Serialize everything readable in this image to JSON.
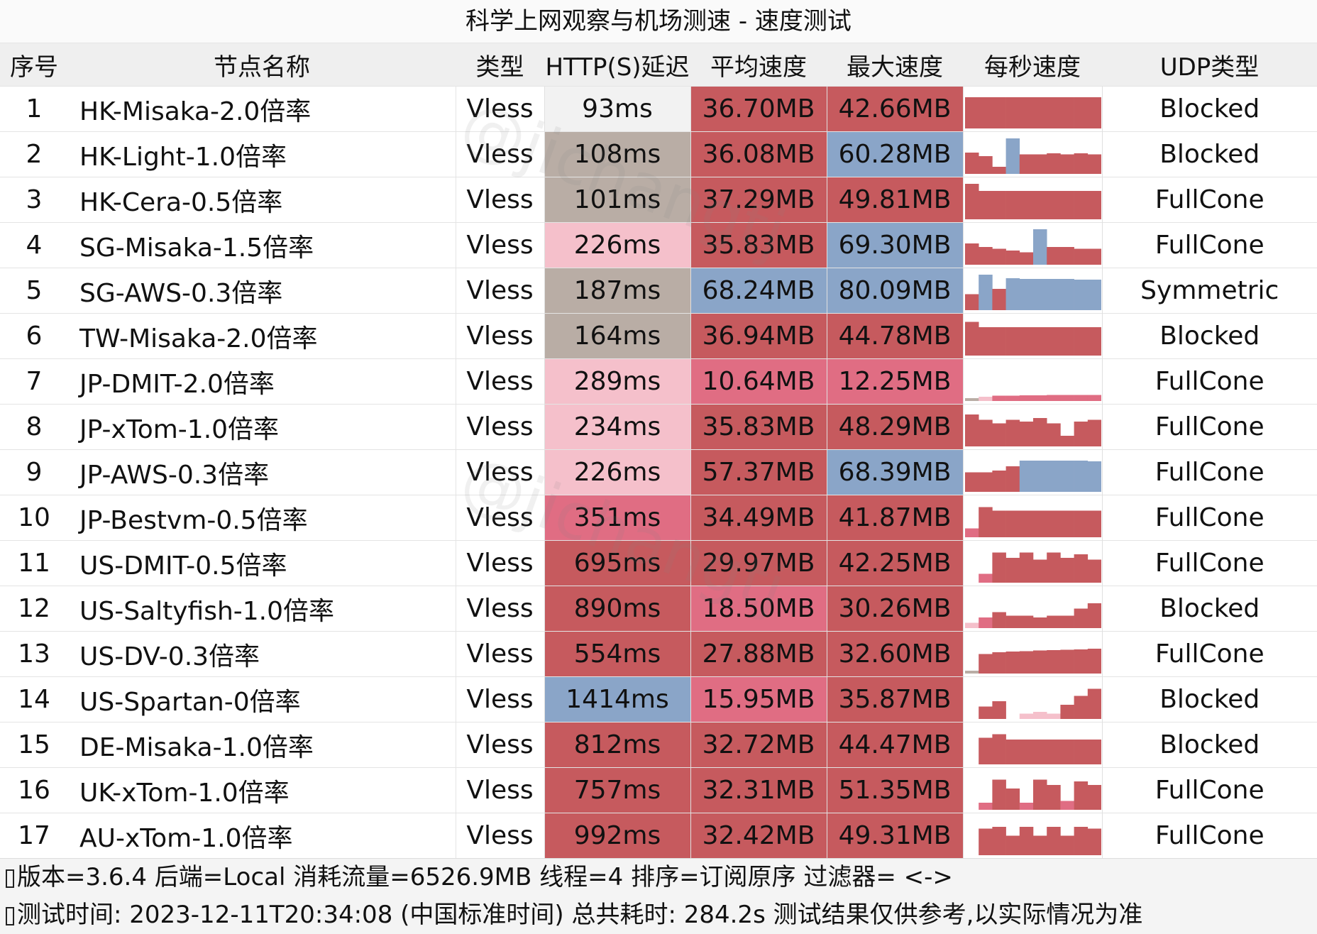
{
  "title": "科学上网观察与机场测速 - 速度测试",
  "watermark": "@jichangtj",
  "colors": {
    "red": "#c65a5e",
    "pink_dark": "#e06d83",
    "pink_light": "#f5c0cb",
    "taupe": "#b9ada5",
    "blue": "#8aa5c8",
    "white_cell": "#f2f2f2",
    "header_bg": "#efefef"
  },
  "headers": {
    "index": "序号",
    "name": "节点名称",
    "type": "类型",
    "latency": "HTTP(S)延迟",
    "avg_speed": "平均速度",
    "max_speed": "最大速度",
    "per_second": "每秒速度",
    "udp": "UDP类型"
  },
  "rows": [
    {
      "idx": "1",
      "name": "HK-Misaka-2.0倍率",
      "type": "Vless",
      "latency": "93ms",
      "latency_color": "white",
      "avg": "36.70MB",
      "avg_color": "red",
      "max": "42.66MB",
      "max_color": "red",
      "udp": "Blocked",
      "spark": [
        {
          "v": 0.88,
          "c": "red"
        },
        {
          "v": 0.88,
          "c": "red"
        },
        {
          "v": 0.88,
          "c": "red"
        },
        {
          "v": 0.88,
          "c": "red"
        },
        {
          "v": 0.88,
          "c": "red"
        },
        {
          "v": 0.88,
          "c": "red"
        },
        {
          "v": 0.88,
          "c": "red"
        },
        {
          "v": 0.88,
          "c": "red"
        },
        {
          "v": 0.88,
          "c": "red"
        },
        {
          "v": 0.88,
          "c": "red"
        }
      ]
    },
    {
      "idx": "2",
      "name": "HK-Light-1.0倍率",
      "type": "Vless",
      "latency": "108ms",
      "latency_color": "taupe",
      "avg": "36.08MB",
      "avg_color": "red",
      "max": "60.28MB",
      "max_color": "blue",
      "udp": "Blocked",
      "spark": [
        {
          "v": 0.6,
          "c": "red"
        },
        {
          "v": 0.5,
          "c": "red"
        },
        {
          "v": 0.2,
          "c": "red"
        },
        {
          "v": 1.0,
          "c": "blue"
        },
        {
          "v": 0.55,
          "c": "red"
        },
        {
          "v": 0.55,
          "c": "red"
        },
        {
          "v": 0.58,
          "c": "red"
        },
        {
          "v": 0.55,
          "c": "red"
        },
        {
          "v": 0.58,
          "c": "red"
        },
        {
          "v": 0.55,
          "c": "red"
        }
      ]
    },
    {
      "idx": "3",
      "name": "HK-Cera-0.5倍率",
      "type": "Vless",
      "latency": "101ms",
      "latency_color": "taupe",
      "avg": "37.29MB",
      "avg_color": "red",
      "max": "49.81MB",
      "max_color": "red",
      "udp": "FullCone",
      "spark": [
        {
          "v": 1.0,
          "c": "red"
        },
        {
          "v": 0.8,
          "c": "red"
        },
        {
          "v": 0.8,
          "c": "red"
        },
        {
          "v": 0.8,
          "c": "red"
        },
        {
          "v": 0.8,
          "c": "red"
        },
        {
          "v": 0.8,
          "c": "red"
        },
        {
          "v": 0.8,
          "c": "red"
        },
        {
          "v": 0.8,
          "c": "red"
        },
        {
          "v": 0.8,
          "c": "red"
        },
        {
          "v": 0.8,
          "c": "red"
        }
      ]
    },
    {
      "idx": "4",
      "name": "SG-Misaka-1.5倍率",
      "type": "Vless",
      "latency": "226ms",
      "latency_color": "pink_light",
      "avg": "35.83MB",
      "avg_color": "red",
      "max": "69.30MB",
      "max_color": "blue",
      "udp": "FullCone",
      "spark": [
        {
          "v": 0.6,
          "c": "red"
        },
        {
          "v": 0.5,
          "c": "red"
        },
        {
          "v": 0.45,
          "c": "red"
        },
        {
          "v": 0.4,
          "c": "red"
        },
        {
          "v": 0.35,
          "c": "red"
        },
        {
          "v": 1.0,
          "c": "blue"
        },
        {
          "v": 0.5,
          "c": "red"
        },
        {
          "v": 0.5,
          "c": "red"
        },
        {
          "v": 0.45,
          "c": "red"
        },
        {
          "v": 0.45,
          "c": "red"
        }
      ]
    },
    {
      "idx": "5",
      "name": "SG-AWS-0.3倍率",
      "type": "Vless",
      "latency": "187ms",
      "latency_color": "taupe",
      "avg": "68.24MB",
      "avg_color": "blue",
      "max": "80.09MB",
      "max_color": "blue",
      "udp": "Symmetric",
      "spark": [
        {
          "v": 0.45,
          "c": "red"
        },
        {
          "v": 1.0,
          "c": "blue"
        },
        {
          "v": 0.6,
          "c": "red"
        },
        {
          "v": 0.9,
          "c": "blue"
        },
        {
          "v": 0.88,
          "c": "blue"
        },
        {
          "v": 0.88,
          "c": "blue"
        },
        {
          "v": 0.88,
          "c": "blue"
        },
        {
          "v": 0.88,
          "c": "blue"
        },
        {
          "v": 0.86,
          "c": "blue"
        },
        {
          "v": 0.86,
          "c": "blue"
        }
      ]
    },
    {
      "idx": "6",
      "name": "TW-Misaka-2.0倍率",
      "type": "Vless",
      "latency": "164ms",
      "latency_color": "taupe",
      "avg": "36.94MB",
      "avg_color": "red",
      "max": "44.78MB",
      "max_color": "red",
      "udp": "Blocked",
      "spark": [
        {
          "v": 0.95,
          "c": "red"
        },
        {
          "v": 0.8,
          "c": "red"
        },
        {
          "v": 0.8,
          "c": "red"
        },
        {
          "v": 0.8,
          "c": "red"
        },
        {
          "v": 0.8,
          "c": "red"
        },
        {
          "v": 0.8,
          "c": "red"
        },
        {
          "v": 0.8,
          "c": "red"
        },
        {
          "v": 0.8,
          "c": "red"
        },
        {
          "v": 0.8,
          "c": "red"
        },
        {
          "v": 0.8,
          "c": "red"
        }
      ]
    },
    {
      "idx": "7",
      "name": "JP-DMIT-2.0倍率",
      "type": "Vless",
      "latency": "289ms",
      "latency_color": "pink_light",
      "avg": "10.64MB",
      "avg_color": "pink_dark",
      "max": "12.25MB",
      "max_color": "pink_dark",
      "udp": "FullCone",
      "spark": [
        {
          "v": 0.08,
          "c": "taupe"
        },
        {
          "v": 0.12,
          "c": "pink_light"
        },
        {
          "v": 0.15,
          "c": "pink_dark"
        },
        {
          "v": 0.15,
          "c": "pink_dark"
        },
        {
          "v": 0.16,
          "c": "pink_dark"
        },
        {
          "v": 0.16,
          "c": "pink_dark"
        },
        {
          "v": 0.17,
          "c": "pink_dark"
        },
        {
          "v": 0.17,
          "c": "pink_dark"
        },
        {
          "v": 0.17,
          "c": "pink_dark"
        },
        {
          "v": 0.17,
          "c": "pink_dark"
        }
      ]
    },
    {
      "idx": "8",
      "name": "JP-xTom-1.0倍率",
      "type": "Vless",
      "latency": "234ms",
      "latency_color": "pink_light",
      "avg": "35.83MB",
      "avg_color": "red",
      "max": "48.29MB",
      "max_color": "red",
      "udp": "FullCone",
      "spark": [
        {
          "v": 0.9,
          "c": "red"
        },
        {
          "v": 0.75,
          "c": "red"
        },
        {
          "v": 0.65,
          "c": "red"
        },
        {
          "v": 0.75,
          "c": "red"
        },
        {
          "v": 0.7,
          "c": "red"
        },
        {
          "v": 0.8,
          "c": "red"
        },
        {
          "v": 0.65,
          "c": "red"
        },
        {
          "v": 0.3,
          "c": "red"
        },
        {
          "v": 0.7,
          "c": "red"
        },
        {
          "v": 0.75,
          "c": "red"
        }
      ]
    },
    {
      "idx": "9",
      "name": "JP-AWS-0.3倍率",
      "type": "Vless",
      "latency": "226ms",
      "latency_color": "pink_light",
      "avg": "57.37MB",
      "avg_color": "red",
      "max": "68.39MB",
      "max_color": "blue",
      "udp": "FullCone",
      "spark": [
        {
          "v": 0.55,
          "c": "red"
        },
        {
          "v": 0.55,
          "c": "red"
        },
        {
          "v": 0.6,
          "c": "red"
        },
        {
          "v": 0.72,
          "c": "red"
        },
        {
          "v": 0.88,
          "c": "blue"
        },
        {
          "v": 0.88,
          "c": "blue"
        },
        {
          "v": 0.88,
          "c": "blue"
        },
        {
          "v": 0.88,
          "c": "blue"
        },
        {
          "v": 0.88,
          "c": "blue"
        },
        {
          "v": 0.86,
          "c": "blue"
        }
      ]
    },
    {
      "idx": "10",
      "name": "JP-Bestvm-0.5倍率",
      "type": "Vless",
      "latency": "351ms",
      "latency_color": "pink_dark",
      "avg": "34.49MB",
      "avg_color": "red",
      "max": "41.87MB",
      "max_color": "red",
      "udp": "FullCone",
      "spark": [
        {
          "v": 0.25,
          "c": "pink_dark"
        },
        {
          "v": 0.85,
          "c": "red"
        },
        {
          "v": 0.75,
          "c": "red"
        },
        {
          "v": 0.75,
          "c": "red"
        },
        {
          "v": 0.75,
          "c": "red"
        },
        {
          "v": 0.75,
          "c": "red"
        },
        {
          "v": 0.75,
          "c": "red"
        },
        {
          "v": 0.75,
          "c": "red"
        },
        {
          "v": 0.75,
          "c": "red"
        },
        {
          "v": 0.75,
          "c": "red"
        }
      ]
    },
    {
      "idx": "11",
      "name": "US-DMIT-0.5倍率",
      "type": "Vless",
      "latency": "695ms",
      "latency_color": "red",
      "avg": "29.97MB",
      "avg_color": "red",
      "max": "42.25MB",
      "max_color": "red",
      "udp": "FullCone",
      "spark": [
        {
          "v": 0.0,
          "c": "red"
        },
        {
          "v": 0.25,
          "c": "pink_dark"
        },
        {
          "v": 0.85,
          "c": "red"
        },
        {
          "v": 0.7,
          "c": "red"
        },
        {
          "v": 0.85,
          "c": "red"
        },
        {
          "v": 0.65,
          "c": "red"
        },
        {
          "v": 0.85,
          "c": "red"
        },
        {
          "v": 0.7,
          "c": "red"
        },
        {
          "v": 0.8,
          "c": "red"
        },
        {
          "v": 0.65,
          "c": "red"
        }
      ]
    },
    {
      "idx": "12",
      "name": "US-Saltyfish-1.0倍率",
      "type": "Vless",
      "latency": "890ms",
      "latency_color": "red",
      "avg": "18.50MB",
      "avg_color": "pink_dark",
      "max": "30.26MB",
      "max_color": "red",
      "udp": "Blocked",
      "spark": [
        {
          "v": 0.15,
          "c": "pink_light"
        },
        {
          "v": 0.3,
          "c": "pink_dark"
        },
        {
          "v": 0.45,
          "c": "red"
        },
        {
          "v": 0.35,
          "c": "red"
        },
        {
          "v": 0.35,
          "c": "red"
        },
        {
          "v": 0.3,
          "c": "red"
        },
        {
          "v": 0.35,
          "c": "red"
        },
        {
          "v": 0.35,
          "c": "red"
        },
        {
          "v": 0.55,
          "c": "red"
        },
        {
          "v": 0.7,
          "c": "red"
        }
      ]
    },
    {
      "idx": "13",
      "name": "US-DV-0.3倍率",
      "type": "Vless",
      "latency": "554ms",
      "latency_color": "red",
      "avg": "27.88MB",
      "avg_color": "red",
      "max": "32.60MB",
      "max_color": "red",
      "udp": "FullCone",
      "spark": [
        {
          "v": 0.08,
          "c": "taupe"
        },
        {
          "v": 0.55,
          "c": "red"
        },
        {
          "v": 0.6,
          "c": "red"
        },
        {
          "v": 0.62,
          "c": "red"
        },
        {
          "v": 0.63,
          "c": "red"
        },
        {
          "v": 0.65,
          "c": "red"
        },
        {
          "v": 0.66,
          "c": "red"
        },
        {
          "v": 0.67,
          "c": "red"
        },
        {
          "v": 0.68,
          "c": "red"
        },
        {
          "v": 0.7,
          "c": "red"
        }
      ]
    },
    {
      "idx": "14",
      "name": "US-Spartan-0倍率",
      "type": "Vless",
      "latency": "1414ms",
      "latency_color": "blue",
      "avg": "15.95MB",
      "avg_color": "pink_dark",
      "max": "35.87MB",
      "max_color": "red",
      "udp": "Blocked",
      "spark": [
        {
          "v": 0.0,
          "c": "red"
        },
        {
          "v": 0.35,
          "c": "red"
        },
        {
          "v": 0.5,
          "c": "red"
        },
        {
          "v": 0.0,
          "c": "red"
        },
        {
          "v": 0.15,
          "c": "pink_light"
        },
        {
          "v": 0.2,
          "c": "pink_light"
        },
        {
          "v": 0.15,
          "c": "pink_light"
        },
        {
          "v": 0.4,
          "c": "red"
        },
        {
          "v": 0.65,
          "c": "red"
        },
        {
          "v": 0.85,
          "c": "red"
        }
      ]
    },
    {
      "idx": "15",
      "name": "DE-Misaka-1.0倍率",
      "type": "Vless",
      "latency": "812ms",
      "latency_color": "red",
      "avg": "32.72MB",
      "avg_color": "red",
      "max": "44.47MB",
      "max_color": "red",
      "udp": "Blocked",
      "spark": [
        {
          "v": 0.0,
          "c": "red"
        },
        {
          "v": 0.75,
          "c": "red"
        },
        {
          "v": 0.85,
          "c": "red"
        },
        {
          "v": 0.7,
          "c": "red"
        },
        {
          "v": 0.7,
          "c": "red"
        },
        {
          "v": 0.7,
          "c": "red"
        },
        {
          "v": 0.7,
          "c": "red"
        },
        {
          "v": 0.7,
          "c": "red"
        },
        {
          "v": 0.7,
          "c": "red"
        },
        {
          "v": 0.7,
          "c": "red"
        }
      ]
    },
    {
      "idx": "16",
      "name": "UK-xTom-1.0倍率",
      "type": "Vless",
      "latency": "757ms",
      "latency_color": "red",
      "avg": "32.31MB",
      "avg_color": "red",
      "max": "51.35MB",
      "max_color": "red",
      "udp": "FullCone",
      "spark": [
        {
          "v": 0.0,
          "c": "red"
        },
        {
          "v": 0.2,
          "c": "pink_dark"
        },
        {
          "v": 0.85,
          "c": "red"
        },
        {
          "v": 0.6,
          "c": "red"
        },
        {
          "v": 0.2,
          "c": "pink_dark"
        },
        {
          "v": 0.85,
          "c": "red"
        },
        {
          "v": 0.7,
          "c": "red"
        },
        {
          "v": 0.25,
          "c": "pink_dark"
        },
        {
          "v": 0.8,
          "c": "red"
        },
        {
          "v": 0.7,
          "c": "red"
        }
      ]
    },
    {
      "idx": "17",
      "name": "AU-xTom-1.0倍率",
      "type": "Vless",
      "latency": "992ms",
      "latency_color": "red",
      "avg": "32.42MB",
      "avg_color": "red",
      "max": "49.31MB",
      "max_color": "red",
      "udp": "FullCone",
      "spark": [
        {
          "v": 0.0,
          "c": "red"
        },
        {
          "v": 0.75,
          "c": "red"
        },
        {
          "v": 0.8,
          "c": "red"
        },
        {
          "v": 0.55,
          "c": "red"
        },
        {
          "v": 0.8,
          "c": "red"
        },
        {
          "v": 0.55,
          "c": "red"
        },
        {
          "v": 0.8,
          "c": "red"
        },
        {
          "v": 0.55,
          "c": "red"
        },
        {
          "v": 0.8,
          "c": "red"
        },
        {
          "v": 0.75,
          "c": "red"
        }
      ]
    }
  ],
  "footer": {
    "line1": "版本=3.6.4  后端=Local  消耗流量=6526.9MB   线程=4  排序=订阅原序  过滤器= <->",
    "line2": "测试时间: 2023-12-11T20:34:08 (中国标准时间) 总共耗时: 284.2s 测试结果仅供参考,以实际情况为准"
  }
}
